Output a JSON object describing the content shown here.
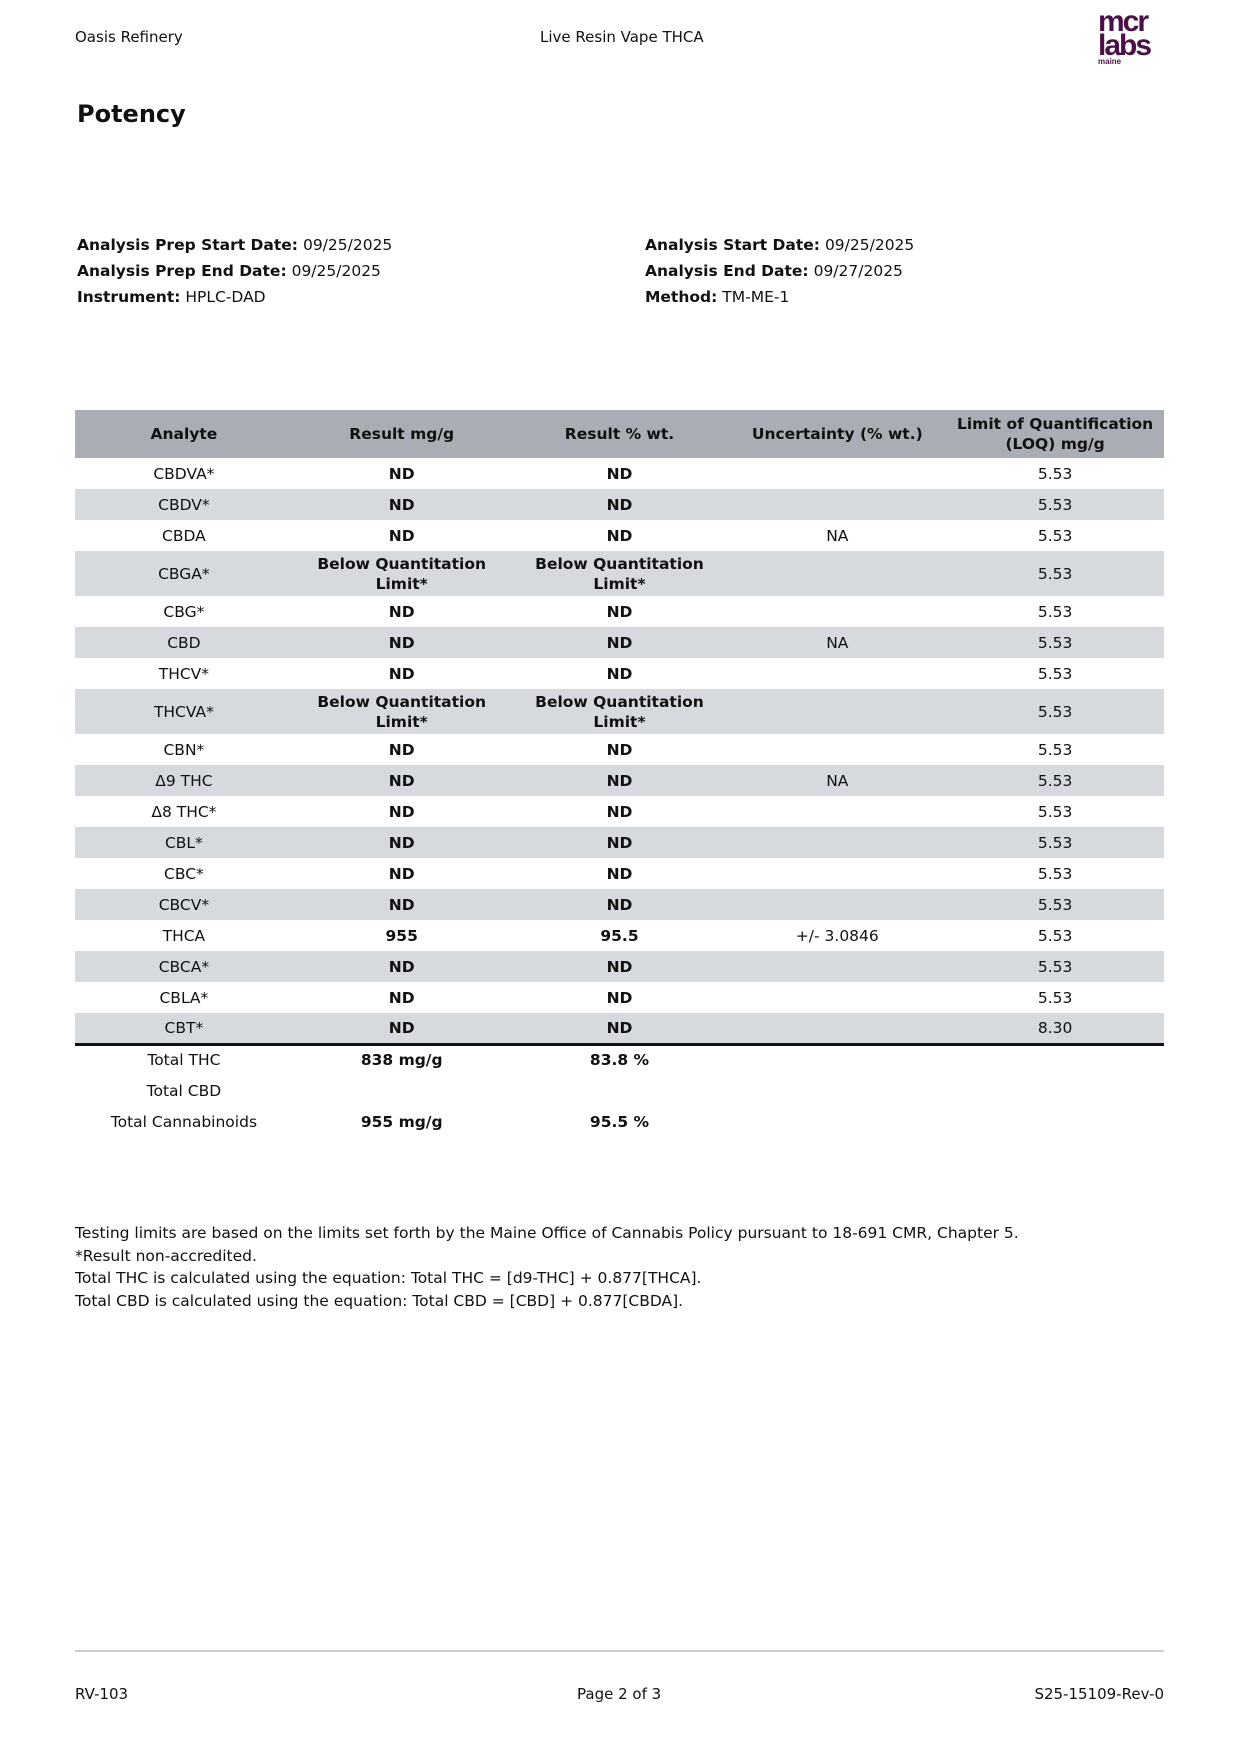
{
  "header": {
    "left": "Oasis Refinery",
    "center": "Live Resin Vape THCA",
    "logo": "mcr labs maine"
  },
  "title": "Potency",
  "meta": {
    "prep_start": {
      "label": "Analysis Prep Start Date:",
      "value": "09/25/2025"
    },
    "prep_end": {
      "label": "Analysis Prep End Date:",
      "value": "09/25/2025"
    },
    "instrument": {
      "label": "Instrument:",
      "value": "HPLC-DAD"
    },
    "start": {
      "label": "Analysis Start Date:",
      "value": "09/25/2025"
    },
    "end": {
      "label": "Analysis End Date:",
      "value": "09/27/2025"
    },
    "method": {
      "label": "Method:",
      "value": "TM-ME-1"
    }
  },
  "table": {
    "columns": [
      "Analyte",
      "Result mg/g",
      "Result % wt.",
      "Uncertainty (% wt.)",
      "Limit of Quantification (LOQ) mg/g"
    ],
    "rows": [
      [
        "CBDVA*",
        "ND",
        "ND",
        "",
        "5.53"
      ],
      [
        "CBDV*",
        "ND",
        "ND",
        "",
        "5.53"
      ],
      [
        "CBDA",
        "ND",
        "ND",
        "NA",
        "5.53"
      ],
      [
        "CBGA*",
        "Below Quantitation Limit*",
        "Below Quantitation Limit*",
        "",
        "5.53"
      ],
      [
        "CBG*",
        "ND",
        "ND",
        "",
        "5.53"
      ],
      [
        "CBD",
        "ND",
        "ND",
        "NA",
        "5.53"
      ],
      [
        "THCV*",
        "ND",
        "ND",
        "",
        "5.53"
      ],
      [
        "THCVA*",
        "Below Quantitation Limit*",
        "Below Quantitation Limit*",
        "",
        "5.53"
      ],
      [
        "CBN*",
        "ND",
        "ND",
        "",
        "5.53"
      ],
      [
        "Δ9 THC",
        "ND",
        "ND",
        "NA",
        "5.53"
      ],
      [
        "Δ8 THC*",
        "ND",
        "ND",
        "",
        "5.53"
      ],
      [
        "CBL*",
        "ND",
        "ND",
        "",
        "5.53"
      ],
      [
        "CBC*",
        "ND",
        "ND",
        "",
        "5.53"
      ],
      [
        "CBCV*",
        "ND",
        "ND",
        "",
        "5.53"
      ],
      [
        "THCA",
        "955",
        "95.5",
        "+/- 3.0846",
        "5.53"
      ],
      [
        "CBCA*",
        "ND",
        "ND",
        "",
        "5.53"
      ],
      [
        "CBLA*",
        "ND",
        "ND",
        "",
        "5.53"
      ],
      [
        "CBT*",
        "ND",
        "ND",
        "",
        "8.30"
      ]
    ],
    "totals": [
      [
        "Total THC",
        "838 mg/g",
        "83.8 %"
      ],
      [
        "Total CBD",
        "",
        ""
      ],
      [
        "Total Cannabinoids",
        "955 mg/g",
        "95.5 %"
      ]
    ]
  },
  "notes": [
    "Testing limits are based on the limits set forth by the Maine Office of Cannabis Policy pursuant to 18-691 CMR, Chapter 5.",
    "*Result non-accredited.",
    "Total THC is calculated using the equation: Total THC = [d9-THC] + 0.877[THCA].",
    "Total CBD is calculated using the equation: Total CBD = [CBD] + 0.877[CBDA]."
  ],
  "footer": {
    "left": "RV-103",
    "center": "Page 2 of 3",
    "right": "S25-15109-Rev-0"
  }
}
